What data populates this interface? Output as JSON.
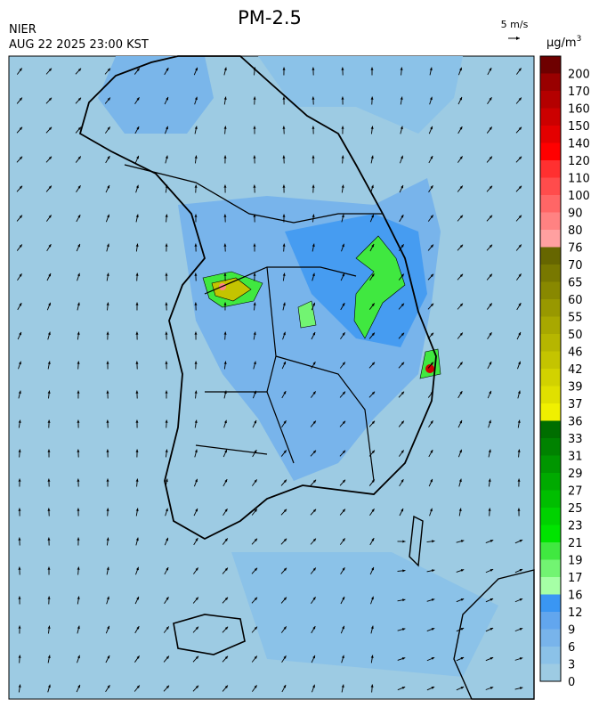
{
  "header": {
    "title": "PM-2.5",
    "agency": "NIER",
    "timestamp": "AUG 22 2025 23:00 KST",
    "wind_scale": "5 m/s"
  },
  "legend": {
    "unit": "μg/m",
    "unit_sup": "3",
    "levels": [
      {
        "value": 0,
        "color": "#9dcbe3"
      },
      {
        "value": 3,
        "color": "#8bc2e8"
      },
      {
        "value": 6,
        "color": "#78b4eb"
      },
      {
        "value": 9,
        "color": "#62a6ee"
      },
      {
        "value": 12,
        "color": "#3a96f3"
      },
      {
        "value": 16,
        "color": "#a6ffa6"
      },
      {
        "value": 17,
        "color": "#72f472"
      },
      {
        "value": 19,
        "color": "#40e840"
      },
      {
        "value": 21,
        "color": "#00e400"
      },
      {
        "value": 23,
        "color": "#00d200"
      },
      {
        "value": 25,
        "color": "#00be00"
      },
      {
        "value": 27,
        "color": "#00aa00"
      },
      {
        "value": 29,
        "color": "#009600"
      },
      {
        "value": 31,
        "color": "#008200"
      },
      {
        "value": 33,
        "color": "#006e00"
      },
      {
        "value": 36,
        "color": "#f0f000"
      },
      {
        "value": 37,
        "color": "#e0e000"
      },
      {
        "value": 39,
        "color": "#d2d200"
      },
      {
        "value": 42,
        "color": "#c4c400"
      },
      {
        "value": 46,
        "color": "#b6b600"
      },
      {
        "value": 50,
        "color": "#a8a800"
      },
      {
        "value": 55,
        "color": "#989800"
      },
      {
        "value": 60,
        "color": "#888800"
      },
      {
        "value": 65,
        "color": "#787800"
      },
      {
        "value": 70,
        "color": "#666600"
      },
      {
        "value": 76,
        "color": "#ffa0a0"
      },
      {
        "value": 80,
        "color": "#ff8282"
      },
      {
        "value": 90,
        "color": "#ff6666"
      },
      {
        "value": 100,
        "color": "#ff4c4c"
      },
      {
        "value": 110,
        "color": "#ff3030"
      },
      {
        "value": 120,
        "color": "#ff0000"
      },
      {
        "value": 140,
        "color": "#e40000"
      },
      {
        "value": 150,
        "color": "#cc0000"
      },
      {
        "value": 160,
        "color": "#b40000"
      },
      {
        "value": 170,
        "color": "#990000"
      },
      {
        "value": 200,
        "color": "#6e0000"
      }
    ]
  }
}
